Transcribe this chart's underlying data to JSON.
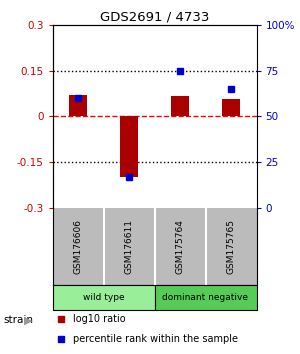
{
  "title": "GDS2691 / 4733",
  "samples": [
    "GSM176606",
    "GSM176611",
    "GSM175764",
    "GSM175765"
  ],
  "log10_ratio": [
    0.07,
    -0.2,
    0.065,
    0.055
  ],
  "percentile_rank": [
    60,
    17,
    75,
    65
  ],
  "ylim_left": [
    -0.3,
    0.3
  ],
  "ylim_right": [
    0,
    100
  ],
  "yticks_left": [
    -0.3,
    -0.15,
    0,
    0.15,
    0.3
  ],
  "yticks_right": [
    0,
    25,
    50,
    75,
    100
  ],
  "ytick_labels_left": [
    "-0.3",
    "-0.15",
    "0",
    "0.15",
    "0.3"
  ],
  "ytick_labels_right": [
    "0",
    "25",
    "50",
    "75",
    "100%"
  ],
  "hlines_dotted": [
    0.15,
    -0.15
  ],
  "hline_dashed": 0.0,
  "bar_color": "#AA0000",
  "dot_color": "#0000CC",
  "strain_groups": [
    {
      "label": "wild type",
      "samples": [
        0,
        1
      ],
      "color": "#99EE99"
    },
    {
      "label": "dominant negative",
      "samples": [
        2,
        3
      ],
      "color": "#55CC55"
    }
  ],
  "strain_label": "strain",
  "legend_items": [
    {
      "color": "#AA0000",
      "label": "log10 ratio"
    },
    {
      "color": "#0000CC",
      "label": "percentile rank within the sample"
    }
  ],
  "bar_width": 0.35,
  "axis_label_color_left": "#CC0000",
  "axis_label_color_right": "#0000CC",
  "title_color": "#000000",
  "background_color": "#ffffff",
  "sample_box_color": "#BBBBBB"
}
